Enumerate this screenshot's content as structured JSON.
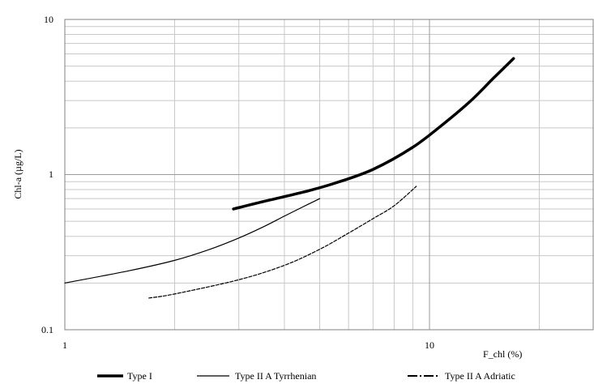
{
  "chart_data": {
    "type": "line",
    "title": "",
    "xlabel": "F_chl (%)",
    "ylabel": "Chl-a (µg/L)",
    "x_scale": "log",
    "y_scale": "log",
    "xlim": [
      1,
      30
    ],
    "ylim": [
      0.1,
      10
    ],
    "x_ticks": [
      "1",
      "10"
    ],
    "y_ticks": [
      "0.1",
      "1",
      "10"
    ],
    "grid": true,
    "legend_position": "bottom",
    "series": [
      {
        "name": "Type I",
        "style": "thick-solid",
        "color": "#000000",
        "x": [
          2.9,
          3.5,
          4.5,
          5.5,
          7.0,
          9.0,
          11.0,
          13.0,
          15.0,
          17.0
        ],
        "y": [
          0.6,
          0.67,
          0.77,
          0.88,
          1.08,
          1.5,
          2.15,
          3.0,
          4.2,
          5.6
        ]
      },
      {
        "name": "Type II A Tyrrhenian",
        "style": "thin-solid",
        "color": "#000000",
        "x": [
          1.0,
          1.5,
          2.0,
          2.5,
          3.0,
          3.5,
          4.0,
          4.5,
          5.0
        ],
        "y": [
          0.2,
          0.24,
          0.28,
          0.33,
          0.39,
          0.46,
          0.54,
          0.62,
          0.7
        ]
      },
      {
        "name": "Type II A Adriatic",
        "style": "dashed",
        "color": "#000000",
        "x": [
          1.7,
          2.0,
          3.0,
          4.0,
          5.0,
          6.0,
          7.0,
          8.0,
          9.2
        ],
        "y": [
          0.16,
          0.17,
          0.21,
          0.26,
          0.33,
          0.42,
          0.52,
          0.63,
          0.84
        ]
      }
    ]
  }
}
